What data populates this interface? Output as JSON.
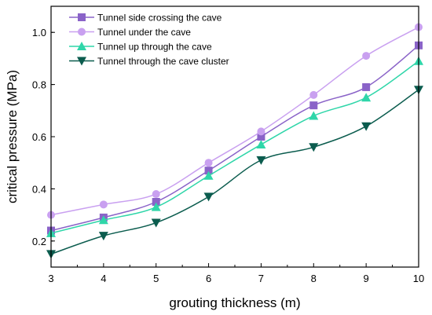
{
  "chart_data": {
    "type": "line",
    "xlabel": "grouting thickness (m)",
    "ylabel": "critical pressure (MPa)",
    "xlim": [
      3,
      10
    ],
    "ylim": [
      0.1,
      1.1
    ],
    "x_ticks": [
      3,
      4,
      5,
      6,
      7,
      8,
      9,
      10
    ],
    "y_ticks": [
      0.2,
      0.4,
      0.6,
      0.8,
      1.0
    ],
    "x_tick_labels": [
      "3",
      "4",
      "5",
      "6",
      "7",
      "8",
      "9",
      "10"
    ],
    "y_tick_labels": [
      "0.2",
      "0.4",
      "0.6",
      "0.8",
      "1.0"
    ],
    "grid": false,
    "legend_position": "top-left",
    "x": [
      3,
      4,
      5,
      6,
      7,
      8,
      9,
      10
    ],
    "series": [
      {
        "name": "Tunnel side crossing the cave",
        "marker": "square",
        "color": "#8a63c8",
        "values": [
          0.24,
          0.29,
          0.35,
          0.47,
          0.6,
          0.72,
          0.79,
          0.95
        ]
      },
      {
        "name": "Tunnel under the cave",
        "marker": "circle",
        "color": "#c9a0f0",
        "values": [
          0.3,
          0.34,
          0.38,
          0.5,
          0.62,
          0.76,
          0.91,
          1.02
        ]
      },
      {
        "name": "Tunnel up through the cave",
        "marker": "triangle-up",
        "color": "#2fd6a9",
        "values": [
          0.23,
          0.28,
          0.33,
          0.45,
          0.57,
          0.68,
          0.75,
          0.89
        ]
      },
      {
        "name": "Tunnel through the cave cluster",
        "marker": "triangle-down",
        "color": "#0b5c4e",
        "values": [
          0.15,
          0.22,
          0.27,
          0.37,
          0.51,
          0.56,
          0.64,
          0.78
        ]
      }
    ]
  }
}
